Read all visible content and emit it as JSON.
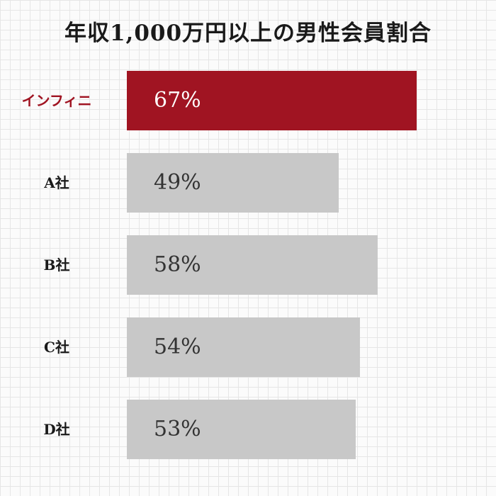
{
  "chart_data": {
    "type": "bar",
    "orientation": "horizontal",
    "title": "年収1,000万円以上の男性会員割合",
    "categories": [
      "インフィニ",
      "A社",
      "B社",
      "C社",
      "D社"
    ],
    "values": [
      67,
      49,
      58,
      54,
      53
    ],
    "value_labels": [
      "67%",
      "49%",
      "58%",
      "54%",
      "53%"
    ],
    "unit": "%",
    "highlight_index": 0,
    "colors": {
      "highlight": "#a01422",
      "default": "#c8c8c8",
      "highlight_text": "#ffffff",
      "default_text": "#333333"
    },
    "grid": true,
    "legend": "none"
  }
}
